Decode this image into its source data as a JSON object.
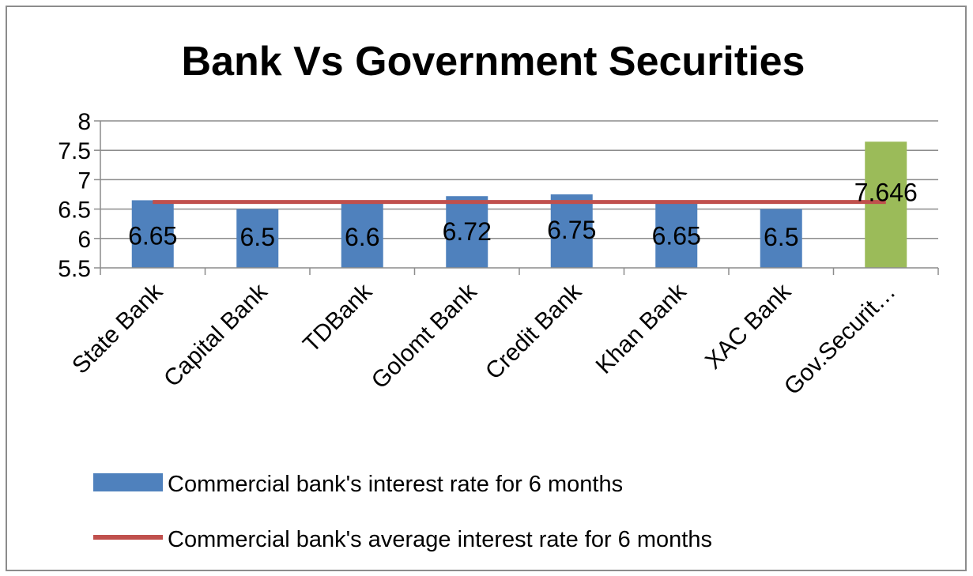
{
  "chart_data": {
    "type": "bar",
    "title": "Bank Vs Government Securities",
    "xlabel": "",
    "ylabel": "",
    "ylim": [
      5.5,
      8
    ],
    "yticks": [
      "5.5",
      "6",
      "6.5",
      "7",
      "7.5",
      "8"
    ],
    "grid": true,
    "legend_position": "bottom",
    "categories": [
      "State Bank",
      "Capital Bank",
      "TDBank",
      "Golomt Bank",
      "Credit Bank",
      "Khan Bank",
      "XAC Bank",
      "Gov.Securit…"
    ],
    "series": [
      {
        "name": "Commercial bank's interest rate for 6 months",
        "type": "bar",
        "values": [
          6.65,
          6.5,
          6.6,
          6.72,
          6.75,
          6.65,
          6.5,
          7.646
        ],
        "data_labels": [
          "6.65",
          "6.5",
          "6.6",
          "6.72",
          "6.75",
          "6.65",
          "6.5",
          "7.646"
        ],
        "colors": [
          "#4f81bd",
          "#4f81bd",
          "#4f81bd",
          "#4f81bd",
          "#4f81bd",
          "#4f81bd",
          "#4f81bd",
          "#9bbb59"
        ]
      },
      {
        "name": "Commercial bank's average interest rate for 6 months",
        "type": "line",
        "value": 6.62,
        "color": "#c0504d"
      }
    ]
  }
}
